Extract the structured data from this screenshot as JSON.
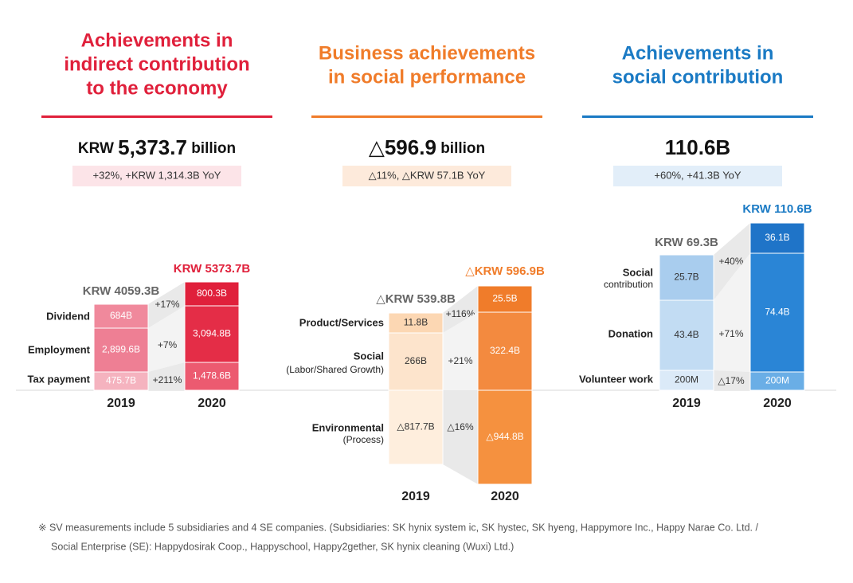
{
  "panels": [
    {
      "title": [
        "Achievements in",
        "indirect contribution",
        "to the economy"
      ],
      "headline": [
        "KRW ",
        "5,373.7",
        " billion"
      ],
      "change": "+32%, +KRW 1,314.3B YoY",
      "rows": [
        {
          "label": [
            "Dividend"
          ],
          "change": "+17%"
        },
        {
          "label": [
            "Employment"
          ],
          "change": "+7%"
        },
        {
          "label": [
            "Tax payment"
          ],
          "change": "+211%"
        }
      ],
      "bars": [
        {
          "year": "2019",
          "total": "KRW 4059.3B",
          "segments": [
            "684B",
            "2,899.6B",
            "475.7B"
          ]
        },
        {
          "year": "2020",
          "total": "KRW 5373.7B",
          "segments": [
            "800.3B",
            "3,094.8B",
            "1,478.6B"
          ]
        }
      ]
    },
    {
      "title": [
        "Business achievements",
        "in social performance"
      ],
      "headline": [
        "△",
        "596.9",
        " billion"
      ],
      "change": "△11%, △KRW 57.1B YoY",
      "rows": [
        {
          "label": [
            "Product/Services"
          ],
          "change": "+116%"
        },
        {
          "label": [
            "Social",
            "(Labor/Shared Growth)"
          ],
          "change": "+21%"
        },
        {
          "label": [
            "Environmental",
            "(Process)"
          ],
          "change": "△16%"
        }
      ],
      "bars": [
        {
          "year": "2019",
          "total": "△KRW 539.8B",
          "segments": [
            "11.8B",
            "266B",
            "△817.7B"
          ]
        },
        {
          "year": "2020",
          "total": "△KRW 596.9B",
          "segments": [
            "25.5B",
            "322.4B",
            "△944.8B"
          ]
        }
      ]
    },
    {
      "title": [
        "Achievements in",
        "social contribution"
      ],
      "headline": [
        "110.6B"
      ],
      "change": "+60%, +41.3B YoY",
      "rows": [
        {
          "label": [
            "Social",
            "contribution"
          ],
          "change": "+40%"
        },
        {
          "label": [
            "Donation"
          ],
          "change": "+71%"
        },
        {
          "label": [
            "Volunteer work"
          ],
          "change": "△17%"
        }
      ],
      "bars": [
        {
          "year": "2019",
          "total": "KRW 69.3B",
          "segments": [
            "25.7B",
            "43.4B",
            "200M"
          ]
        },
        {
          "year": "2020",
          "total": "KRW 110.6B",
          "segments": [
            "36.1B",
            "74.4B",
            "200M"
          ]
        }
      ]
    }
  ],
  "footnote": [
    "※ SV measurements include 5 subsidiaries and 4 SE companies. (Subsidiaries: SK hynix system ic, SK hystec, SK hyeng, Happymore Inc., Happy Narae Co. Ltd. /",
    "Social Enterprise (SE):  Happydosirak Coop., Happyschool, Happy2gether, SK hynix cleaning (Wuxi) Ltd.)"
  ]
}
